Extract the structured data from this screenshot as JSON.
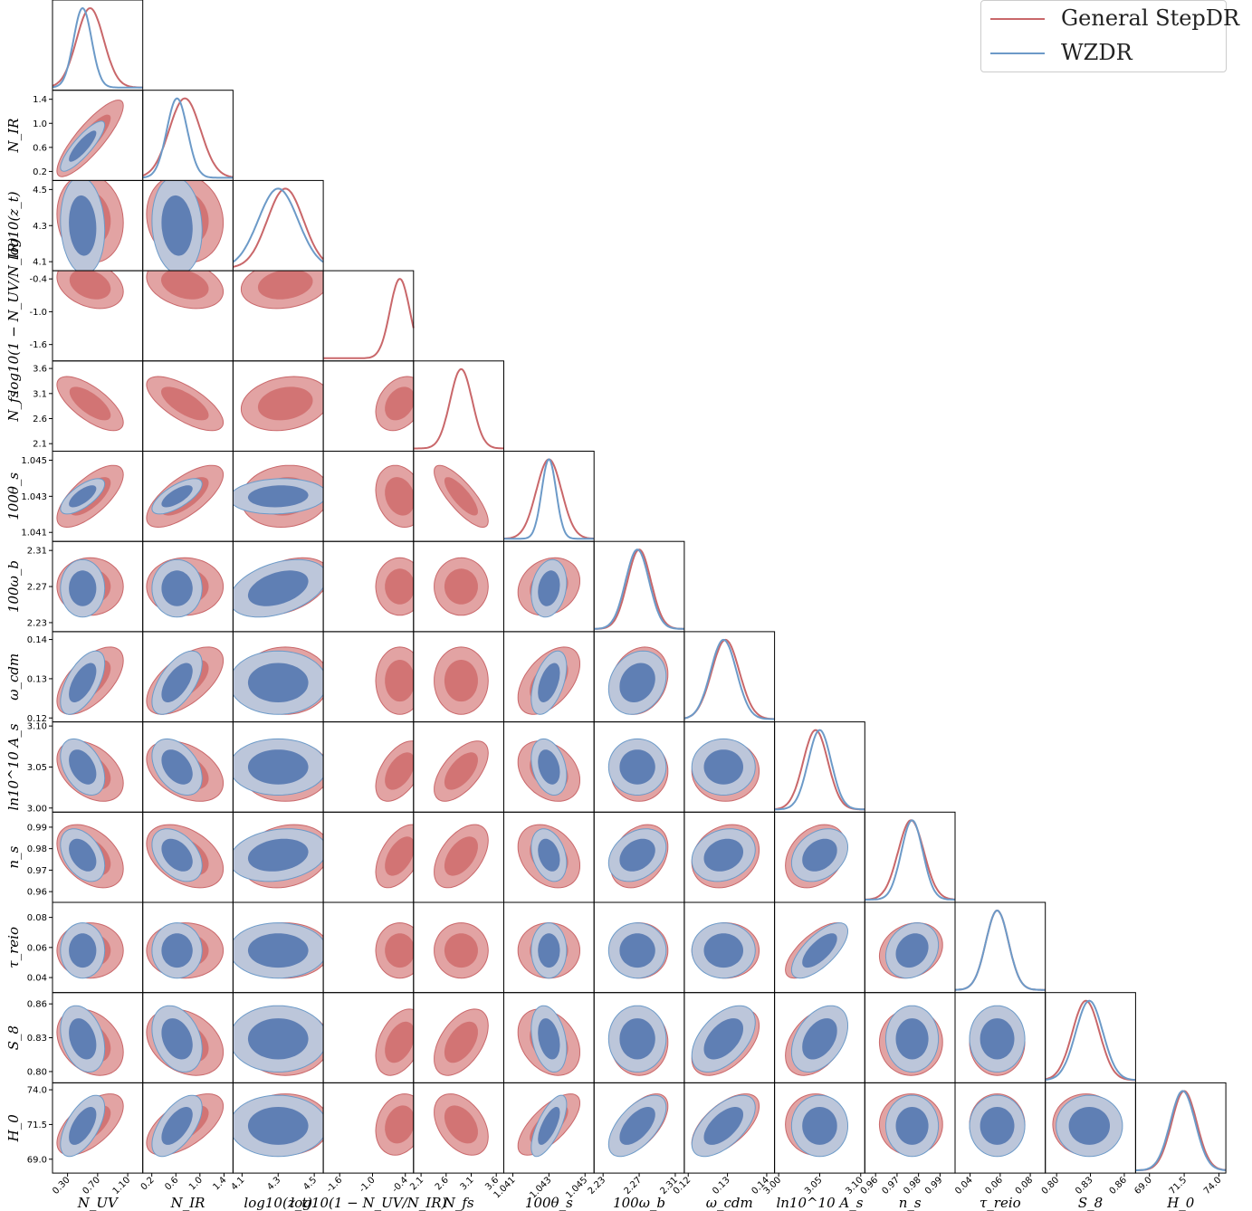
{
  "legend": {
    "items": [
      {
        "label": "General StepDR",
        "color": "#c9676a"
      },
      {
        "label": "WZDR",
        "color": "#6c9ac8"
      }
    ]
  },
  "colors": {
    "stepdr_fill_outer": "#e2a3a3",
    "stepdr_fill_inner": "#d27474",
    "wzdr_fill_outer": "#bcc6da",
    "wzdr_fill_inner": "#5f7fb4",
    "stepdr_line": "#c9676a",
    "wzdr_line": "#6c9ac8"
  },
  "chart_data": {
    "type": "triangle-corner",
    "series": [
      "General StepDR",
      "WZDR"
    ],
    "parameters": [
      {
        "label": "N_UV",
        "ticks": [
          "0.30",
          "0.70",
          "1.10"
        ],
        "range": [
          0.1,
          1.3
        ],
        "stepdr": {
          "mean": 0.6,
          "sd": 0.18
        },
        "wzdr": {
          "mean": 0.5,
          "sd": 0.12
        }
      },
      {
        "label": "N_IR",
        "ticks": [
          "0.2",
          "0.6",
          "1.0",
          "1.4"
        ],
        "range": [
          0.05,
          1.55
        ],
        "stepdr": {
          "mean": 0.75,
          "sd": 0.26
        },
        "wzdr": {
          "mean": 0.62,
          "sd": 0.17
        }
      },
      {
        "label": "log10(z_t)",
        "ticks": [
          "4.1",
          "4.3",
          "4.5"
        ],
        "range": [
          4.05,
          4.55
        ],
        "stepdr": {
          "mean": 4.34,
          "sd": 0.1
        },
        "wzdr": {
          "mean": 4.3,
          "sd": 0.11
        }
      },
      {
        "label": "log10(1 − N_UV/N_IR)",
        "ticks": [
          "-1.6",
          "-1.0",
          "-0.4"
        ],
        "range": [
          -1.9,
          -0.25
        ],
        "stepdr": {
          "mean": -0.5,
          "sd": 0.18
        },
        "wzdr": null
      },
      {
        "label": "N_fs",
        "ticks": [
          "2.1",
          "2.6",
          "3.1",
          "3.6"
        ],
        "range": [
          1.95,
          3.75
        ],
        "stepdr": {
          "mean": 2.9,
          "sd": 0.22
        },
        "wzdr": null
      },
      {
        "label": "100θ_s",
        "ticks": [
          "1.041",
          "1.043",
          "1.045"
        ],
        "range": [
          1.0405,
          1.0455
        ],
        "stepdr": {
          "mean": 1.043,
          "sd": 0.0007
        },
        "wzdr": {
          "mean": 1.043,
          "sd": 0.0004
        }
      },
      {
        "label": "100ω_b",
        "ticks": [
          "2.23",
          "2.27",
          "2.31"
        ],
        "range": [
          2.22,
          2.32
        ],
        "stepdr": {
          "mean": 2.27,
          "sd": 0.013
        },
        "wzdr": {
          "mean": 2.268,
          "sd": 0.013
        }
      },
      {
        "label": "ω_cdm",
        "ticks": [
          "0.12",
          "0.13",
          "0.14"
        ],
        "range": [
          0.119,
          0.142
        ],
        "stepdr": {
          "mean": 0.1295,
          "sd": 0.0035
        },
        "wzdr": {
          "mean": 0.129,
          "sd": 0.0033
        }
      },
      {
        "label": "ln10^10 A_s",
        "ticks": [
          "3.00",
          "3.05",
          "3.10"
        ],
        "range": [
          2.995,
          3.105
        ],
        "stepdr": {
          "mean": 3.045,
          "sd": 0.015
        },
        "wzdr": {
          "mean": 3.05,
          "sd": 0.014
        }
      },
      {
        "label": "n_s",
        "ticks": [
          "0.96",
          "0.97",
          "0.98",
          "0.99"
        ],
        "range": [
          0.955,
          0.997
        ],
        "stepdr": {
          "mean": 0.9765,
          "sd": 0.006
        },
        "wzdr": {
          "mean": 0.977,
          "sd": 0.005
        }
      },
      {
        "label": "τ_reio",
        "ticks": [
          "0.04",
          "0.06",
          "0.08"
        ],
        "range": [
          0.03,
          0.09
        ],
        "stepdr": {
          "mean": 0.058,
          "sd": 0.0075
        },
        "wzdr": {
          "mean": 0.058,
          "sd": 0.0075
        }
      },
      {
        "label": "S_8",
        "ticks": [
          "0.80",
          "0.83",
          "0.86"
        ],
        "range": [
          0.79,
          0.87
        ],
        "stepdr": {
          "mean": 0.826,
          "sd": 0.012
        },
        "wzdr": {
          "mean": 0.829,
          "sd": 0.012
        }
      },
      {
        "label": "H_0",
        "ticks": [
          "69.0",
          "71.5",
          "74.0"
        ],
        "range": [
          68.0,
          74.5
        ],
        "stepdr": {
          "mean": 71.5,
          "sd": 0.9
        },
        "wzdr": {
          "mean": 71.4,
          "sd": 0.9
        }
      }
    ]
  }
}
